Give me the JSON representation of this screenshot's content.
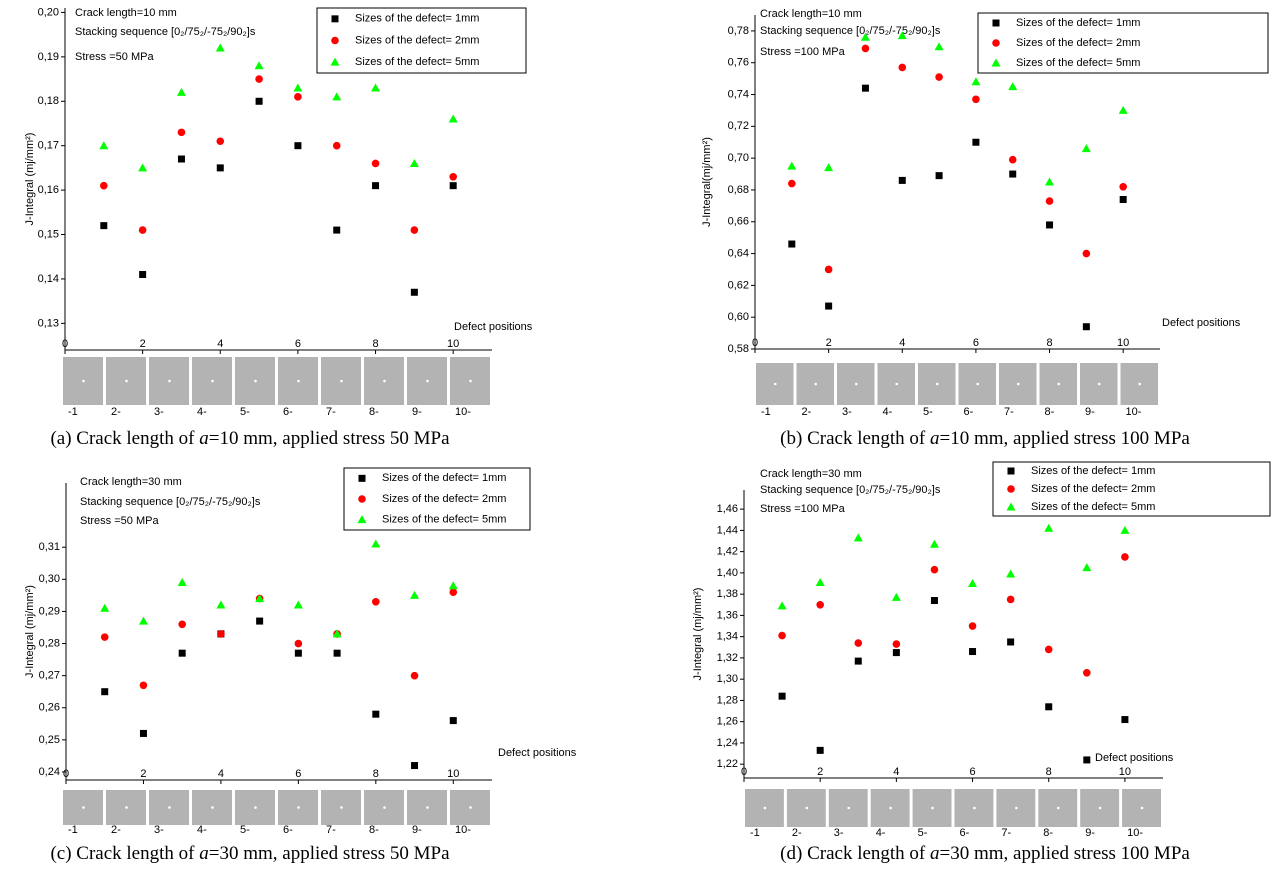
{
  "chart_data": [
    {
      "type": "scatter",
      "notes": [
        "Crack length=10 mm",
        "Stacking sequence [0₂/75₂/-75₂/90₂]s",
        "Stress =50 MPa"
      ],
      "y_label": "J-Integral (mj/mm²)",
      "annotation": "Defect positions",
      "caption": [
        "(a) Crack length of ",
        "a",
        "=10 mm, applied stress 50 MPa"
      ],
      "panel_labels": [
        "-1",
        "2-",
        "3-",
        "4-",
        "5-",
        "6-",
        "7-",
        "8-",
        "9-",
        "10-"
      ],
      "x": [
        1,
        2,
        3,
        4,
        5,
        6,
        7,
        8,
        9,
        10
      ],
      "xlim": [
        0,
        11
      ],
      "xticks": [
        0,
        2,
        4,
        6,
        8,
        10
      ],
      "ylim": [
        0.124,
        0.201
      ],
      "yticks": [
        {
          "value": 0.13,
          "label": "0,13"
        },
        {
          "value": 0.14,
          "label": "0,14"
        },
        {
          "value": 0.15,
          "label": "0,15"
        },
        {
          "value": 0.16,
          "label": "0,16"
        },
        {
          "value": 0.17,
          "label": "0,17"
        },
        {
          "value": 0.18,
          "label": "0,18"
        },
        {
          "value": 0.19,
          "label": "0,19"
        },
        {
          "value": 0.2,
          "label": "0,20"
        }
      ],
      "series": [
        {
          "name": "Sizes of the defect= 1mm",
          "color": "#000000",
          "marker": "square",
          "values": [
            0.152,
            0.141,
            0.167,
            0.165,
            0.18,
            0.17,
            0.151,
            0.161,
            0.137,
            0.161
          ]
        },
        {
          "name": "Sizes of the defect= 2mm",
          "color": "#ff0000",
          "marker": "circle",
          "values": [
            0.161,
            0.151,
            0.173,
            0.171,
            0.185,
            0.181,
            0.17,
            0.166,
            0.151,
            0.163
          ]
        },
        {
          "name": "Sizes of the defect= 5mm",
          "color": "#00ff00",
          "marker": "triangle",
          "values": [
            0.17,
            0.165,
            0.182,
            0.192,
            0.188,
            0.183,
            0.181,
            0.183,
            0.166,
            0.176
          ]
        }
      ]
    },
    {
      "type": "scatter",
      "notes": [
        "Crack length=10 mm",
        "Stacking sequence [0₂/75₂/-75₂/90₂]s",
        "Stress =100 MPa"
      ],
      "y_label": "J-Integral(mj/mm²)",
      "annotation": "Defect positions",
      "caption": [
        "(b) Crack length of ",
        "a",
        "=10 mm, applied stress 100 MPa"
      ],
      "panel_labels": [
        "-1",
        "2-",
        "3-",
        "4-",
        "5-",
        "6-",
        "7-",
        "8-",
        "9-",
        "10-"
      ],
      "x": [
        1,
        2,
        3,
        4,
        5,
        6,
        7,
        8,
        9,
        10
      ],
      "xlim": [
        0,
        11
      ],
      "xticks": [
        0,
        2,
        4,
        6,
        8,
        10
      ],
      "ylim": [
        0.58,
        0.79
      ],
      "yticks": [
        {
          "value": 0.58,
          "label": "0,58"
        },
        {
          "value": 0.6,
          "label": "0,60"
        },
        {
          "value": 0.62,
          "label": "0,62"
        },
        {
          "value": 0.64,
          "label": "0,64"
        },
        {
          "value": 0.66,
          "label": "0,66"
        },
        {
          "value": 0.68,
          "label": "0,68"
        },
        {
          "value": 0.7,
          "label": "0,70"
        },
        {
          "value": 0.72,
          "label": "0,72"
        },
        {
          "value": 0.74,
          "label": "0,74"
        },
        {
          "value": 0.76,
          "label": "0,76"
        },
        {
          "value": 0.78,
          "label": "0,78"
        }
      ],
      "series": [
        {
          "name": "Sizes of the defect= 1mm",
          "color": "#000000",
          "marker": "square",
          "values": [
            0.646,
            0.607,
            0.744,
            0.686,
            0.689,
            0.71,
            0.69,
            0.658,
            0.594,
            0.674
          ]
        },
        {
          "name": "Sizes of the defect= 2mm",
          "color": "#ff0000",
          "marker": "circle",
          "values": [
            0.684,
            0.63,
            0.769,
            0.757,
            0.751,
            0.737,
            0.699,
            0.673,
            0.64,
            0.682
          ]
        },
        {
          "name": "Sizes of the defect= 5mm",
          "color": "#00ff00",
          "marker": "triangle",
          "values": [
            0.695,
            0.694,
            0.776,
            0.777,
            0.77,
            0.748,
            0.745,
            0.685,
            0.706,
            0.73
          ]
        }
      ]
    },
    {
      "type": "scatter",
      "notes": [
        "Crack length=30 mm",
        "Stacking sequence [0₂/75₂/-75₂/90₂]s",
        "Stress =50 MPa"
      ],
      "y_label": "J-Integral (mj/mm²)",
      "annotation": "Defect positions",
      "caption": [
        "(c) Crack length of ",
        "a",
        "=30 mm, applied stress 50 MPa"
      ],
      "panel_labels": [
        "-1",
        "2-",
        "3-",
        "4-",
        "5-",
        "6-",
        "7-",
        "8-",
        "9-",
        "10-"
      ],
      "x": [
        1,
        2,
        3,
        4,
        5,
        6,
        7,
        8,
        9,
        10
      ],
      "xlim": [
        0,
        11
      ],
      "xticks": [
        0,
        2,
        4,
        6,
        8,
        10
      ],
      "ylim": [
        0.2375,
        0.33
      ],
      "yticks": [
        {
          "value": 0.24,
          "label": "0,24"
        },
        {
          "value": 0.25,
          "label": "0,25"
        },
        {
          "value": 0.26,
          "label": "0,26"
        },
        {
          "value": 0.27,
          "label": "0,27"
        },
        {
          "value": 0.28,
          "label": "0,28"
        },
        {
          "value": 0.29,
          "label": "0,29"
        },
        {
          "value": 0.3,
          "label": "0,30"
        },
        {
          "value": 0.31,
          "label": "0,31"
        }
      ],
      "series": [
        {
          "name": "Sizes of the defect= 1mm",
          "color": "#000000",
          "marker": "square",
          "values": [
            0.265,
            0.252,
            0.277,
            0.283,
            0.287,
            0.277,
            0.277,
            0.258,
            0.242,
            0.256
          ]
        },
        {
          "name": "Sizes of the defect= 2mm",
          "color": "#ff0000",
          "marker": "circle",
          "values": [
            0.282,
            0.267,
            0.286,
            0.283,
            0.294,
            0.28,
            0.283,
            0.293,
            0.27,
            0.296
          ]
        },
        {
          "name": "Sizes of the defect= 5mm",
          "color": "#00ff00",
          "marker": "triangle",
          "values": [
            0.291,
            0.287,
            0.299,
            0.292,
            0.294,
            0.292,
            0.283,
            0.311,
            0.295,
            0.298
          ]
        }
      ]
    },
    {
      "type": "scatter",
      "notes": [
        "Crack length=30 mm",
        "Stacking sequence [0₂/75₂/-75₂/90₂]s",
        "Stress =100 MPa"
      ],
      "y_label": "J-Integral (mj/mm²)",
      "annotation": "Defect positions",
      "caption": [
        "(d) Crack length of ",
        "a",
        "=30 mm, applied stress 100 MPa"
      ],
      "panel_labels": [
        "-1",
        "2-",
        "3-",
        "4-",
        "5-",
        "6-",
        "7-",
        "8-",
        "9-",
        "10-"
      ],
      "x": [
        1,
        2,
        3,
        4,
        5,
        6,
        7,
        8,
        9,
        10
      ],
      "xlim": [
        0,
        11
      ],
      "xticks": [
        0,
        2,
        4,
        6,
        8,
        10
      ],
      "ylim": [
        1.207,
        1.478
      ],
      "yticks": [
        {
          "value": 1.22,
          "label": "1,22"
        },
        {
          "value": 1.24,
          "label": "1,24"
        },
        {
          "value": 1.26,
          "label": "1,26"
        },
        {
          "value": 1.28,
          "label": "1,28"
        },
        {
          "value": 1.3,
          "label": "1,30"
        },
        {
          "value": 1.32,
          "label": "1,32"
        },
        {
          "value": 1.34,
          "label": "1,34"
        },
        {
          "value": 1.36,
          "label": "1,36"
        },
        {
          "value": 1.38,
          "label": "1,38"
        },
        {
          "value": 1.4,
          "label": "1,40"
        },
        {
          "value": 1.42,
          "label": "1,42"
        },
        {
          "value": 1.44,
          "label": "1,44"
        },
        {
          "value": 1.46,
          "label": "1,46"
        }
      ],
      "series": [
        {
          "name": "Sizes of the defect= 1mm",
          "color": "#000000",
          "marker": "square",
          "values": [
            1.284,
            1.233,
            1.317,
            1.325,
            1.374,
            1.326,
            1.335,
            1.274,
            1.224,
            1.262
          ]
        },
        {
          "name": "Sizes of the defect= 2mm",
          "color": "#ff0000",
          "marker": "circle",
          "values": [
            1.341,
            1.37,
            1.334,
            1.333,
            1.403,
            1.35,
            1.375,
            1.328,
            1.306,
            1.415
          ]
        },
        {
          "name": "Sizes of the defect= 5mm",
          "color": "#00ff00",
          "marker": "triangle",
          "values": [
            1.369,
            1.391,
            1.433,
            1.377,
            1.427,
            1.39,
            1.399,
            1.442,
            1.405,
            1.44
          ]
        }
      ]
    }
  ]
}
